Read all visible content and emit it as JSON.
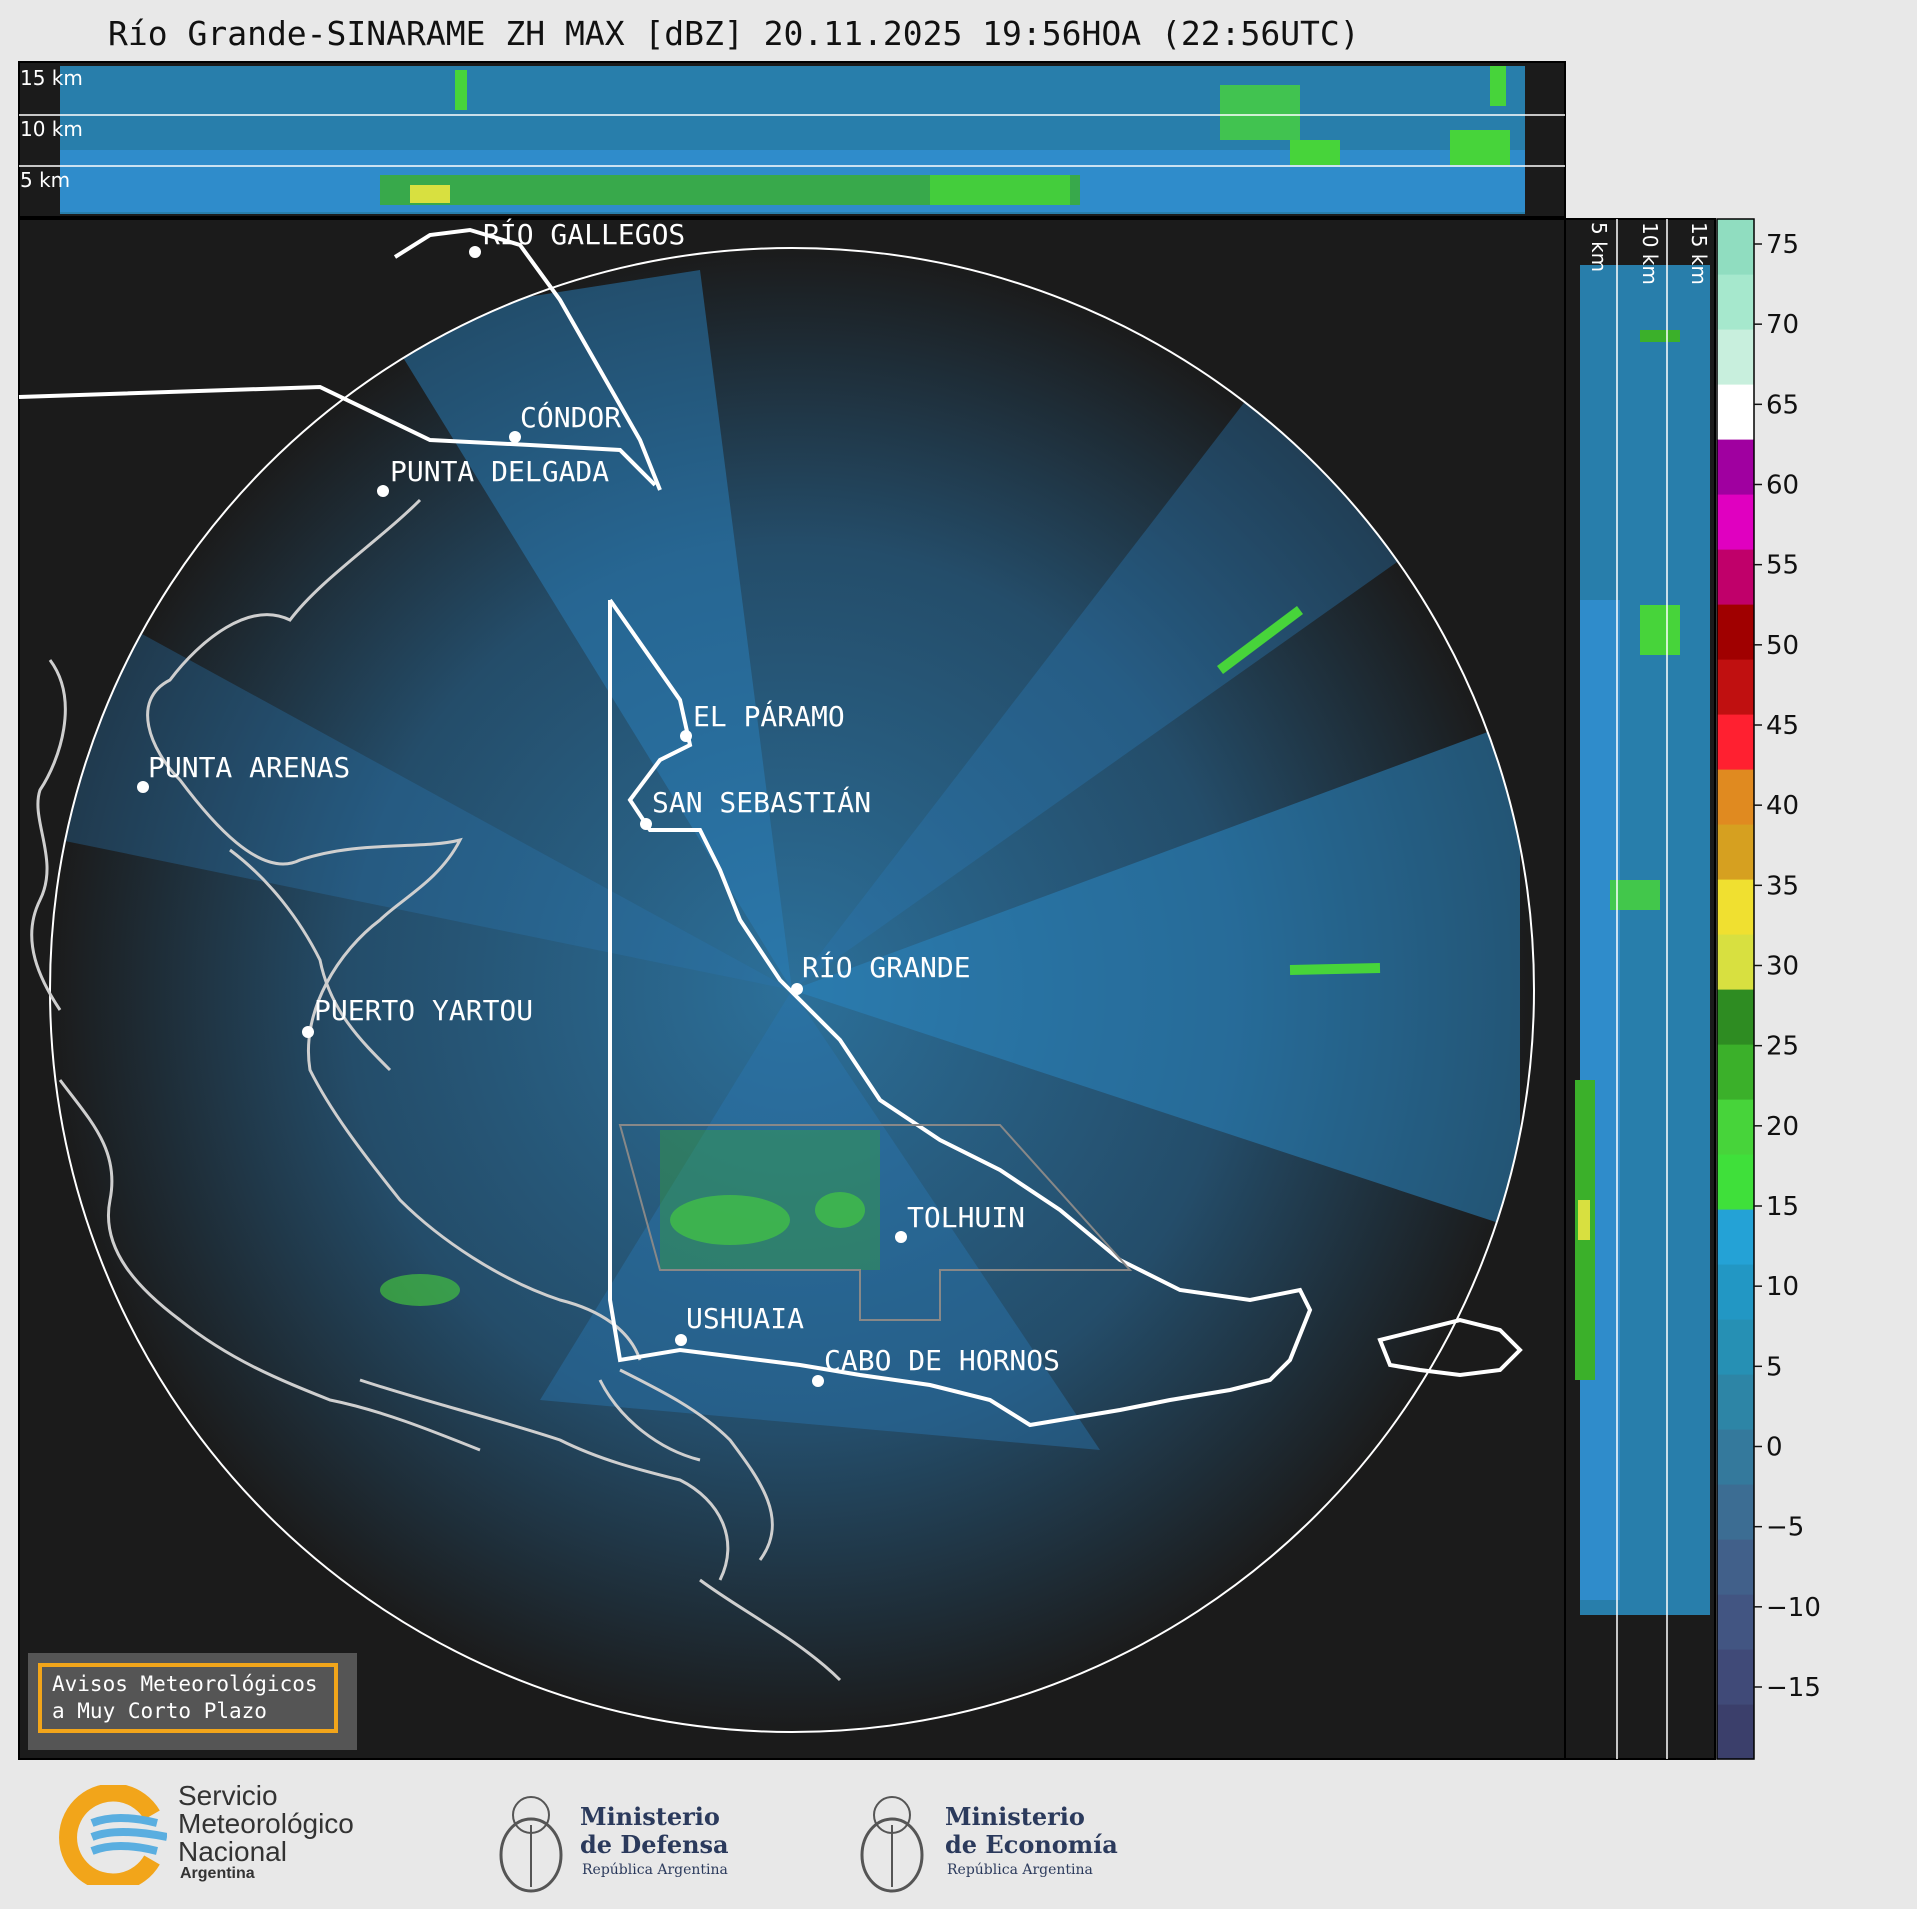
{
  "title": "Río Grande-SINARAME ZH MAX [dBZ] 20.11.2025 19:56HOA (22:56UTC)",
  "height_labels": [
    "15 km",
    "10 km",
    "5 km"
  ],
  "colorbar": {
    "ticks": [
      "75",
      "70",
      "65",
      "60",
      "55",
      "50",
      "45",
      "40",
      "35",
      "30",
      "25",
      "20",
      "15",
      "10",
      "5",
      "0",
      "−5",
      "−10",
      "−15"
    ],
    "colors": [
      "#3b3f6b",
      "#404a78",
      "#425582",
      "#41608a",
      "#3c6d93",
      "#34799c",
      "#2d85a6",
      "#2690b4",
      "#2297c4",
      "#24a2d6",
      "#3fe03a",
      "#47d43a",
      "#3bb02a",
      "#2e8c22",
      "#d8e040",
      "#f0e030",
      "#d6a020",
      "#e08a20",
      "#ff2030",
      "#c01010",
      "#a00000",
      "#c0006a",
      "#e000c0",
      "#a000a0",
      "#ffffff",
      "#c8efdd",
      "#a6e8cd",
      "#90ddc0"
    ]
  },
  "cities": [
    {
      "name": "RÍO GALLEGOS"
    },
    {
      "name": "CÓNDOR"
    },
    {
      "name": "PUNTA DELGADA"
    },
    {
      "name": "EL PÁRAMO"
    },
    {
      "name": "PUNTA ARENAS"
    },
    {
      "name": "SAN SEBASTIÁN"
    },
    {
      "name": "RÍO GRANDE"
    },
    {
      "name": "PUERTO YARTOU"
    },
    {
      "name": "TOLHUIN"
    },
    {
      "name": "USHUAIA"
    },
    {
      "name": "CABO DE HORNOS"
    }
  ],
  "warning": {
    "line1": "Avisos Meteorológicos",
    "line2": "a Muy Corto Plazo"
  },
  "logos": {
    "smn": {
      "line1": "Servicio",
      "line2": "Meteorológico",
      "line3": "Nacional",
      "line4": "Argentina"
    },
    "defensa": {
      "line1": "Ministerio",
      "line2": "de Defensa",
      "line3": "República Argentina"
    },
    "economia": {
      "line1": "Ministerio",
      "line2": "de Economía",
      "line3": "República Argentina"
    }
  }
}
